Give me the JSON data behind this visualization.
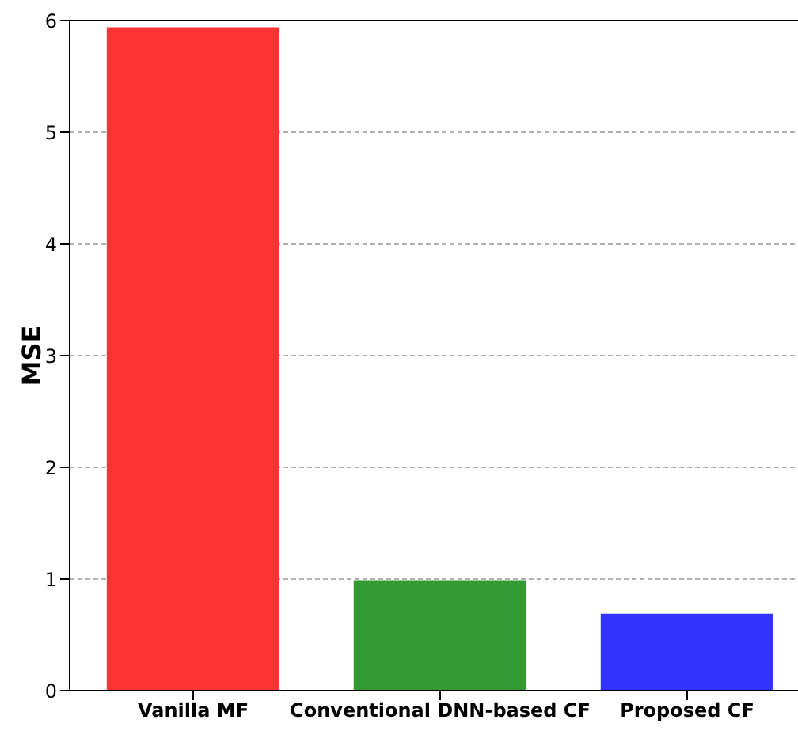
{
  "chart_data": {
    "type": "bar",
    "ylabel": "MSE",
    "categories": [
      "Vanilla MF",
      "Conventional DNN-based CF",
      "Proposed CF"
    ],
    "values": [
      5.94,
      0.99,
      0.69
    ],
    "colors": [
      "#ff3333",
      "#339933",
      "#3333ff"
    ],
    "ylim": [
      0,
      6
    ],
    "yticks": [
      0,
      1,
      2,
      3,
      4,
      5,
      6
    ],
    "grid": "y"
  }
}
